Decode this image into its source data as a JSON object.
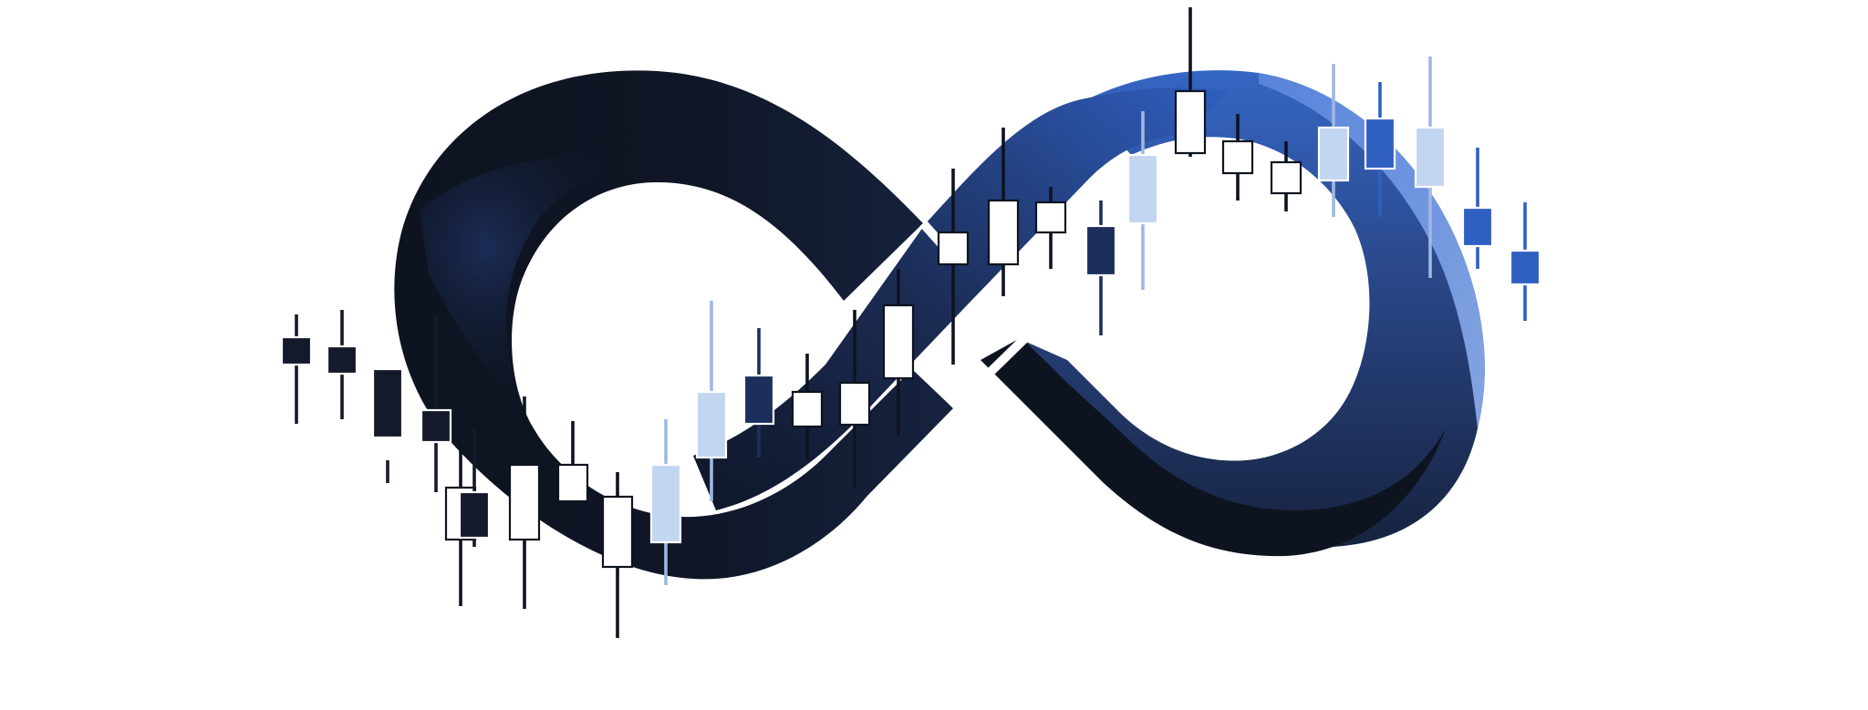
{
  "logo": {
    "shape": "infinity-symbol",
    "colors": {
      "dark_navy": "#0e1320",
      "mid_navy": "#1c2c52",
      "royal_blue": "#2f5fc0",
      "light_blue": "#7ea3e6",
      "pale_blue": "#c2d6f2",
      "white": "#ffffff"
    }
  },
  "candlesticks": {
    "count": 28,
    "trend": "rising",
    "fills": [
      "dark",
      "dark",
      "dark",
      "dark",
      "white",
      "dark",
      "white",
      "white",
      "white",
      "pale",
      "pale",
      "navy",
      "white",
      "white",
      "white",
      "white",
      "white",
      "white",
      "navy",
      "pale",
      "white",
      "white",
      "white",
      "pale",
      "blue",
      "pale",
      "blue",
      "blue"
    ]
  }
}
